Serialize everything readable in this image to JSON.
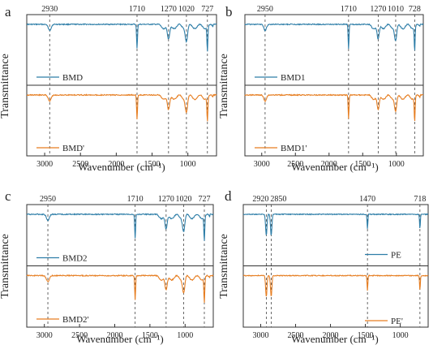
{
  "colors": {
    "blue": "#2e7ea8",
    "orange": "#e67e22",
    "frame": "#333333",
    "guide": "#444444"
  },
  "chart_data": [
    {
      "type": "line",
      "panel_label": "a",
      "xlabel": "Wavenumber (cm⁻¹)",
      "ylabel": "Transmittance",
      "xlim": [
        3250,
        600
      ],
      "x_ticks": [
        3000,
        2500,
        2000,
        1500,
        1000
      ],
      "x_tick_labels": [
        "3000",
        "2500",
        "2000",
        "1500",
        "1000"
      ],
      "peaks": [
        2930,
        1710,
        1270,
        1020,
        727
      ],
      "peak_labels": [
        "2930",
        "1710",
        "1270",
        "1020",
        "727"
      ],
      "series": [
        {
          "name": "BMD",
          "color": "#2e7ea8"
        },
        {
          "name": "BMD'",
          "color": "#e67e22"
        }
      ]
    },
    {
      "type": "line",
      "panel_label": "b",
      "xlabel": "Wavenumber (cm⁻¹)",
      "ylabel": "Transmittance",
      "xlim": [
        3250,
        600
      ],
      "x_ticks": [
        3000,
        2500,
        2000,
        1500,
        1000
      ],
      "x_tick_labels": [
        "3000",
        "2500",
        "2000",
        "1500",
        "1000"
      ],
      "peaks": [
        2950,
        1710,
        1270,
        1010,
        728
      ],
      "peak_labels": [
        "2950",
        "1710",
        "1270",
        "1010",
        "728"
      ],
      "series": [
        {
          "name": "BMD1",
          "color": "#2e7ea8"
        },
        {
          "name": "BMD1'",
          "color": "#e67e22"
        }
      ]
    },
    {
      "type": "line",
      "panel_label": "c",
      "xlabel": "Wavenumber (cm⁻¹)",
      "ylabel": "Transmittance",
      "xlim": [
        3250,
        600
      ],
      "x_ticks": [
        3000,
        2500,
        2000,
        1500,
        1000
      ],
      "x_tick_labels": [
        "3000",
        "2500",
        "2000",
        "1500",
        "1000"
      ],
      "peaks": [
        2950,
        1710,
        1270,
        1020,
        727
      ],
      "peak_labels": [
        "2950",
        "1710",
        "1270",
        "1020",
        "727"
      ],
      "series": [
        {
          "name": "BMD2",
          "color": "#2e7ea8"
        },
        {
          "name": "BMD2'",
          "color": "#e67e22"
        }
      ]
    },
    {
      "type": "line",
      "panel_label": "d",
      "xlabel": "Wavenumber (cm⁻¹)",
      "ylabel": "Transmittance",
      "xlim": [
        3250,
        600
      ],
      "x_ticks": [
        3000,
        2500,
        2000,
        1500,
        1000
      ],
      "x_tick_labels": [
        "3000",
        "2500",
        "2000",
        "1500",
        "1000"
      ],
      "peaks": [
        2920,
        2850,
        1470,
        718
      ],
      "peak_labels": [
        "2920",
        "2850",
        "1470",
        "718"
      ],
      "series": [
        {
          "name": "PE",
          "color": "#2e7ea8"
        },
        {
          "name": "PE'",
          "color": "#e67e22"
        }
      ]
    }
  ]
}
